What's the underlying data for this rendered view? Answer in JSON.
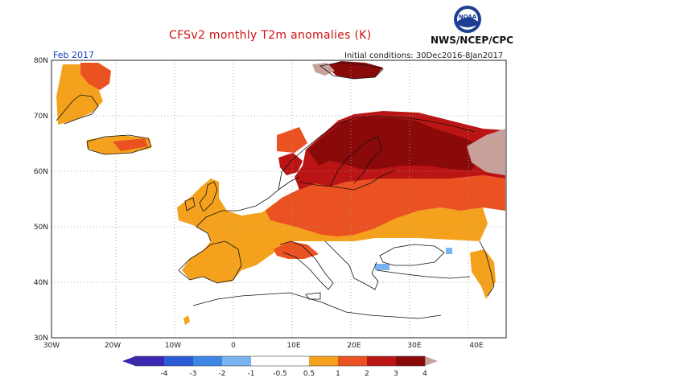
{
  "header": {
    "title": "CFSv2 monthly T2m anomalies (K)",
    "month": "Feb 2017",
    "initial_conditions": "Initial conditions: 30Dec2016-8Jan2017",
    "organization": "NWS/NCEP/CPC",
    "logo_text": "NOAA"
  },
  "map": {
    "region": "Europe",
    "lon_range": [
      -30,
      47
    ],
    "lat_range": [
      30,
      80
    ],
    "lat_ticks": [
      "80N",
      "70N",
      "60N",
      "50N",
      "40N",
      "30N"
    ],
    "lon_ticks": [
      "30W",
      "20W",
      "10W",
      "0",
      "10E",
      "20E",
      "30E",
      "40E"
    ],
    "grid": "dotted"
  },
  "legend": {
    "tick_labels": [
      "-4",
      "-3",
      "-2",
      "-1",
      "-0.5",
      "0.5",
      "1",
      "2",
      "3",
      "4"
    ],
    "colors": [
      "#3a28b0",
      "#2a5cd8",
      "#3e86e6",
      "#7ab4f0",
      "#ffffff",
      "#f4a21e",
      "#ea5222",
      "#bb1414",
      "#8a0a0a",
      "#c8a09a"
    ]
  },
  "colors": {
    "title": "#cc1111",
    "month": "#1a3fc8",
    "anom_0_5_1": "#f4a21e",
    "anom_1_2": "#ea5222",
    "anom_2_3": "#bb1414",
    "anom_3_4": "#8a0a0a",
    "anom_gt_4": "#c8a09a",
    "anom_neg": "#7ab4f0"
  }
}
